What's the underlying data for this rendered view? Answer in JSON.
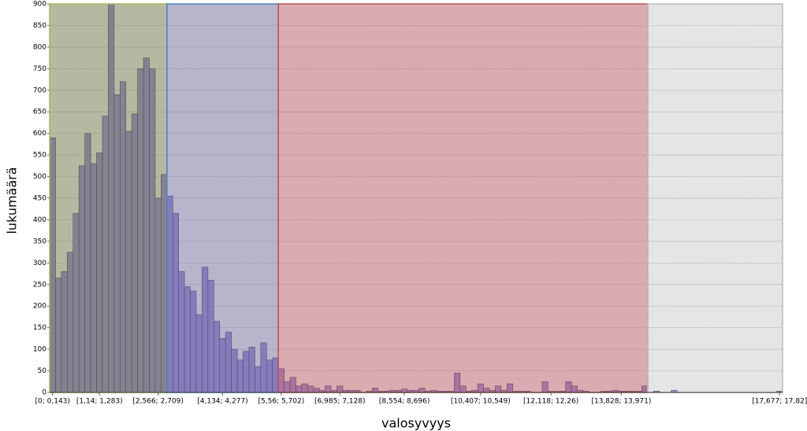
{
  "chart_data": {
    "type": "bar",
    "y_label": "lukumäärä",
    "x_label": "valosyvyys",
    "categories": [
      "[0; 0,143)",
      null,
      null,
      null,
      null,
      null,
      null,
      null,
      "[1,14; 1,283)",
      null,
      null,
      null,
      null,
      null,
      null,
      null,
      null,
      null,
      "[2,566; 2,709)",
      null,
      null,
      null,
      null,
      null,
      null,
      null,
      null,
      null,
      null,
      "[4,134; 4,277)",
      null,
      null,
      null,
      null,
      null,
      null,
      null,
      null,
      null,
      "[5,56; 5,702)",
      null,
      null,
      null,
      null,
      null,
      null,
      null,
      null,
      null,
      "[6,985; 7,128)",
      null,
      null,
      null,
      null,
      null,
      null,
      null,
      null,
      null,
      null,
      "[8,554; 8,696)",
      null,
      null,
      null,
      null,
      null,
      null,
      null,
      null,
      null,
      null,
      null,
      null,
      "[10,407; 10,549)",
      null,
      null,
      null,
      null,
      null,
      null,
      null,
      null,
      null,
      null,
      null,
      "[12,118; 12,26)",
      null,
      null,
      null,
      null,
      null,
      null,
      null,
      null,
      null,
      null,
      null,
      "[13,828; 13,971)",
      null,
      null,
      null,
      null,
      null,
      null,
      null,
      null,
      null,
      null,
      null,
      null,
      null,
      null,
      null,
      null,
      null,
      null,
      null,
      null,
      null,
      null,
      null,
      null,
      null,
      null,
      "[17,677; 17,82]"
    ],
    "values": [
      590,
      265,
      280,
      325,
      415,
      525,
      600,
      530,
      555,
      640,
      900,
      690,
      720,
      605,
      645,
      750,
      775,
      750,
      450,
      505,
      455,
      415,
      280,
      245,
      235,
      180,
      290,
      260,
      165,
      125,
      140,
      100,
      75,
      95,
      105,
      60,
      115,
      75,
      80,
      55,
      25,
      35,
      15,
      20,
      15,
      10,
      5,
      15,
      5,
      15,
      5,
      5,
      5,
      0,
      3,
      10,
      3,
      3,
      5,
      5,
      8,
      5,
      5,
      10,
      3,
      5,
      3,
      3,
      3,
      45,
      15,
      3,
      5,
      20,
      10,
      5,
      15,
      5,
      20,
      3,
      3,
      3,
      0,
      0,
      25,
      3,
      3,
      3,
      25,
      15,
      5,
      3,
      0,
      0,
      3,
      3,
      5,
      3,
      3,
      3,
      3,
      15,
      0,
      3,
      0,
      0,
      5,
      0,
      0,
      0,
      0,
      0,
      0,
      0,
      0,
      0,
      0,
      0,
      0,
      0,
      0,
      0,
      0,
      0,
      3
    ],
    "color": "#9b8fe0",
    "ylim": [
      0,
      900
    ],
    "yticks": [
      0,
      50,
      100,
      150,
      200,
      250,
      300,
      350,
      400,
      450,
      500,
      550,
      600,
      650,
      700,
      750,
      800,
      850,
      900
    ],
    "grid": true,
    "bands": [
      {
        "start": 0,
        "end": 20,
        "fill": "#6e7346",
        "border": "#9bbb59"
      },
      {
        "start": 20,
        "end": 39,
        "fill": "#6f6a9a",
        "border": "#4f81bd"
      },
      {
        "start": 39,
        "end": 102,
        "fill": "#b55a63",
        "border": "#c0504d"
      },
      {
        "start": 102,
        "end": 125,
        "fill": "#999999",
        "border": "#bbbbbb"
      }
    ]
  }
}
